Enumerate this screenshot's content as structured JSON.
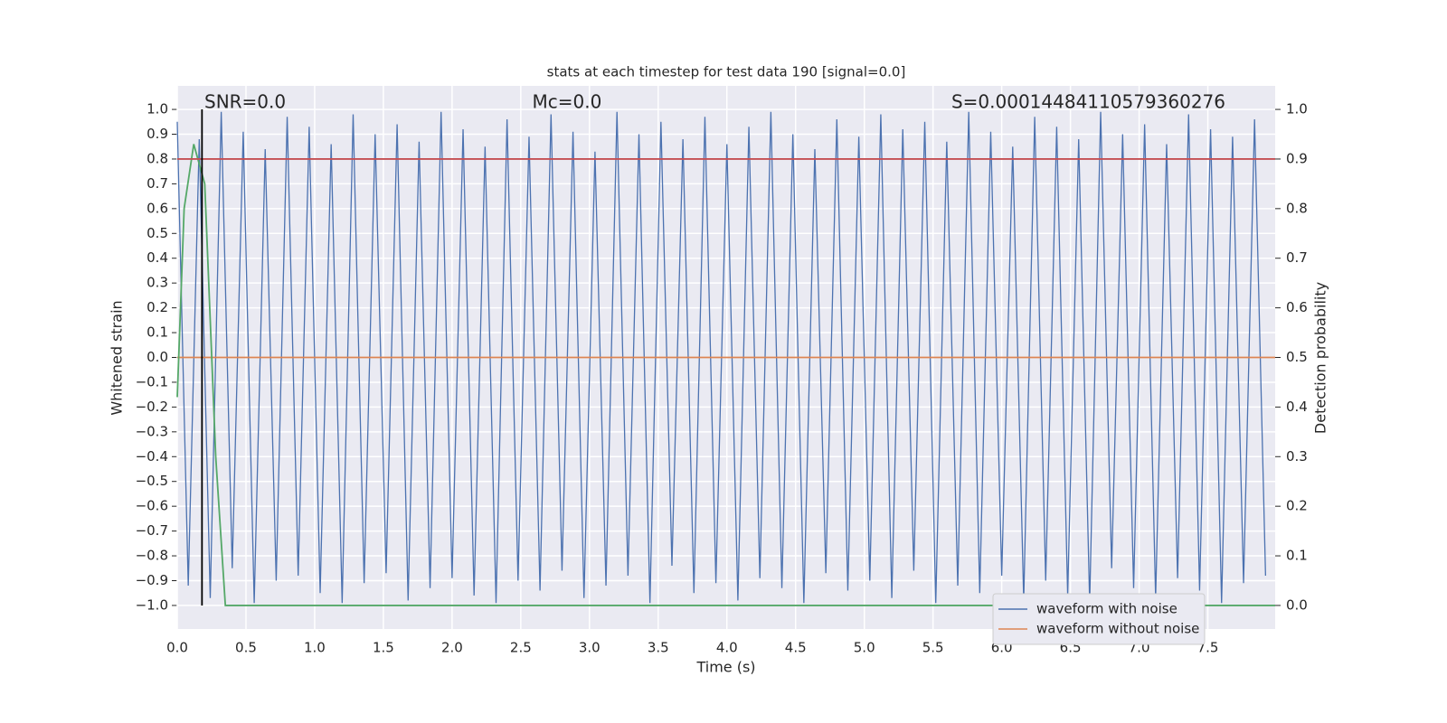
{
  "chart_data": {
    "type": "line",
    "title": "stats at each timestep for test data 190 [signal=0.0]",
    "xlabel": "Time (s)",
    "ylabel": "Whitened strain",
    "y2label": "Detection probability",
    "annotations": [
      "SNR=0.0",
      "Mc=0.0",
      "S=0.00014484110579360276"
    ],
    "vlines": [
      0.18
    ],
    "vline_color": "#000000",
    "grid": true,
    "legend": "lower right",
    "xlim": [
      0,
      7.99
    ],
    "ylim": [
      -1.095,
      1.095
    ],
    "y2lim": [
      -0.0475,
      1.0475
    ],
    "xticks": [
      {
        "value": 0,
        "label": "0.0"
      },
      0.5,
      {
        "value": 1,
        "label": "1.0"
      },
      1.5,
      {
        "value": 2,
        "label": "2.0"
      },
      2.5,
      {
        "value": 3,
        "label": "3.0"
      },
      3.5,
      {
        "value": 4,
        "label": "4.0"
      },
      4.5,
      {
        "value": 5,
        "label": "5.0"
      },
      5.5,
      {
        "value": 6,
        "label": "6.0"
      },
      6.5,
      {
        "value": 7,
        "label": "7.0"
      },
      7.5
    ],
    "yticks": [
      {
        "value": 1,
        "label": "1.0"
      },
      0.9,
      0.8,
      0.7,
      0.6,
      0.5,
      0.4,
      0.3,
      0.2,
      0.1,
      {
        "value": 0,
        "label": "0.0"
      },
      {
        "value": -0.1,
        "label": "−0.1"
      },
      {
        "value": -0.2,
        "label": "−0.2"
      },
      {
        "value": -0.3,
        "label": "−0.3"
      },
      {
        "value": -0.4,
        "label": "−0.4"
      },
      {
        "value": -0.5,
        "label": "−0.5"
      },
      {
        "value": -0.6,
        "label": "−0.6"
      },
      {
        "value": -0.7,
        "label": "−0.7"
      },
      {
        "value": -0.8,
        "label": "−0.8"
      },
      {
        "value": -0.9,
        "label": "−0.9"
      },
      {
        "value": -1,
        "label": "−1.0"
      }
    ],
    "y2ticks": [
      {
        "value": 1,
        "label": "1.0"
      },
      0.9,
      0.8,
      0.7,
      0.6,
      0.5,
      0.4,
      0.3,
      0.2,
      0.1,
      {
        "value": 0,
        "label": "0.0"
      }
    ],
    "series": [
      {
        "name": "waveform with noise",
        "color": "#4c72b0",
        "x": [
          0,
          0.08,
          0.16,
          0.24,
          0.32,
          0.4,
          0.48,
          0.56,
          0.64,
          0.72,
          0.8,
          0.88,
          0.96,
          1.04,
          1.12,
          1.2,
          1.28,
          1.36,
          1.44,
          1.52,
          1.6,
          1.68,
          1.76,
          1.84,
          1.92,
          2,
          2.08,
          2.16,
          2.24,
          2.32,
          2.4,
          2.48,
          2.56,
          2.64,
          2.72,
          2.8,
          2.88,
          2.96,
          3.04,
          3.12,
          3.2,
          3.28,
          3.36,
          3.44,
          3.52,
          3.6,
          3.68,
          3.76,
          3.84,
          3.92,
          4,
          4.08,
          4.16,
          4.24,
          4.32,
          4.4,
          4.48,
          4.56,
          4.64,
          4.72,
          4.8,
          4.88,
          4.96,
          5.04,
          5.12,
          5.2,
          5.28,
          5.36,
          5.44,
          5.52,
          5.6,
          5.68,
          5.76,
          5.84,
          5.92,
          6,
          6.08,
          6.16,
          6.24,
          6.32,
          6.4,
          6.48,
          6.56,
          6.64,
          6.72,
          6.8,
          6.88,
          6.96,
          7.04,
          7.12,
          7.2,
          7.28,
          7.36,
          7.44,
          7.52,
          7.6,
          7.68,
          7.76,
          7.84,
          7.92
        ],
        "values": [
          0.95,
          -0.92,
          0.88,
          -0.97,
          0.99,
          -0.85,
          0.91,
          -0.99,
          0.84,
          -0.9,
          0.97,
          -0.88,
          0.93,
          -0.95,
          0.86,
          -0.99,
          0.98,
          -0.91,
          0.9,
          -0.87,
          0.94,
          -0.98,
          0.87,
          -0.93,
          0.99,
          -0.89,
          0.92,
          -0.96,
          0.85,
          -0.99,
          0.96,
          -0.9,
          0.89,
          -0.94,
          0.98,
          -0.86,
          0.91,
          -0.97,
          0.83,
          -0.92,
          0.99,
          -0.88,
          0.9,
          -0.99,
          0.95,
          -0.84,
          0.88,
          -0.95,
          0.97,
          -0.91,
          0.86,
          -0.98,
          0.93,
          -0.89,
          0.99,
          -0.93,
          0.9,
          -0.99,
          0.84,
          -0.87,
          0.96,
          -0.94,
          0.89,
          -0.9,
          0.98,
          -0.97,
          0.92,
          -0.86,
          0.95,
          -0.99,
          0.87,
          -0.92,
          0.99,
          -0.95,
          0.91,
          -0.88,
          0.85,
          -0.98,
          0.97,
          -0.9,
          0.93,
          -0.96,
          0.88,
          -0.99,
          0.99,
          -0.85,
          0.9,
          -0.93,
          0.94,
          -0.97,
          0.86,
          -0.89,
          0.98,
          -0.94,
          0.92,
          -0.99,
          0.89,
          -0.91,
          0.96,
          -0.88
        ]
      },
      {
        "name": "waveform without noise",
        "color": "#dd8452",
        "x": [
          0,
          7.99
        ],
        "values": [
          0,
          0
        ]
      },
      {
        "color": "#55a868",
        "axis": "y2",
        "x": [
          0,
          0.05,
          0.12,
          0.2,
          0.28,
          0.35,
          7.99
        ],
        "values": [
          0.42,
          0.8,
          0.93,
          0.85,
          0.3,
          0,
          0
        ]
      },
      {
        "color": "#c44e52",
        "axis": "y2",
        "x": [
          0,
          7.99
        ],
        "values": [
          0.9,
          0.9
        ]
      }
    ]
  }
}
